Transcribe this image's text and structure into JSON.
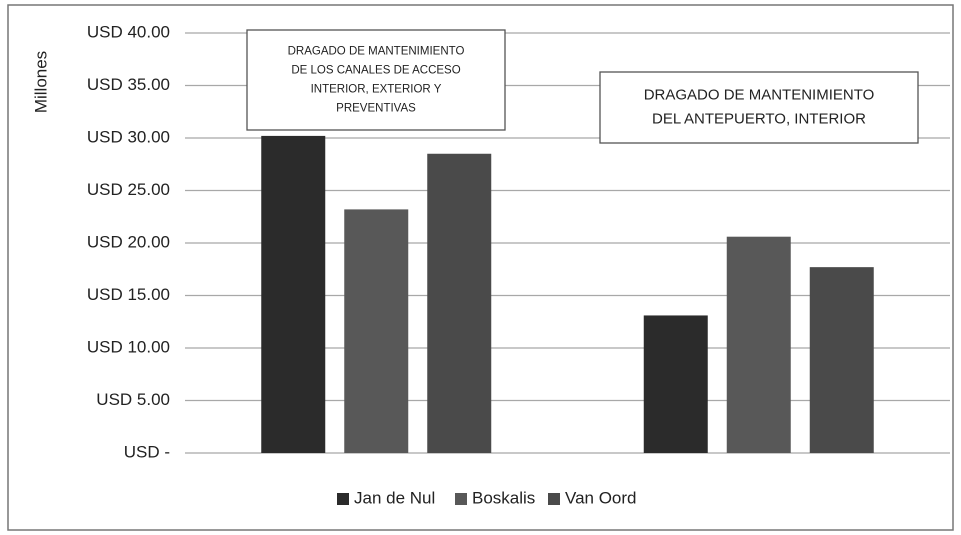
{
  "chart_data": {
    "type": "bar",
    "y_label": "Millones",
    "categories": [
      null,
      null
    ],
    "series": [
      {
        "name": "Jan de Nul",
        "color": "#2b2b2b",
        "values": [
          30.2,
          13.1
        ]
      },
      {
        "name": "Boskalis",
        "color": "#585858",
        "values": [
          23.2,
          20.6
        ]
      },
      {
        "name": "Van Oord",
        "color": "#4a4a4a",
        "values": [
          28.5,
          17.7
        ]
      }
    ],
    "ylim": [
      0,
      40
    ],
    "yticks": [
      {
        "value": 0,
        "label": "USD -"
      },
      {
        "value": 5,
        "label": "USD 5.00"
      },
      {
        "value": 10,
        "label": "USD 10.00"
      },
      {
        "value": 15,
        "label": "USD 15.00"
      },
      {
        "value": 20,
        "label": "USD 20.00"
      },
      {
        "value": 25,
        "label": "USD 25.00"
      },
      {
        "value": 30,
        "label": "USD 30.00"
      },
      {
        "value": 35,
        "label": "USD 35.00"
      },
      {
        "value": 40,
        "label": "USD 40.00"
      }
    ],
    "grid": true,
    "legend": "bottom",
    "annotations": [
      {
        "lines": [
          "DRAGADO DE  MANTENIMIENTO",
          "DE LOS CANALES DE ACCESO",
          "INTERIOR,  EXTERIOR Y",
          "PREVENTIVAS"
        ]
      },
      {
        "lines": [
          "DRAGADO DE MANTENIMIENTO",
          "DEL ANTEPUERTO, INTERIOR"
        ]
      }
    ]
  }
}
